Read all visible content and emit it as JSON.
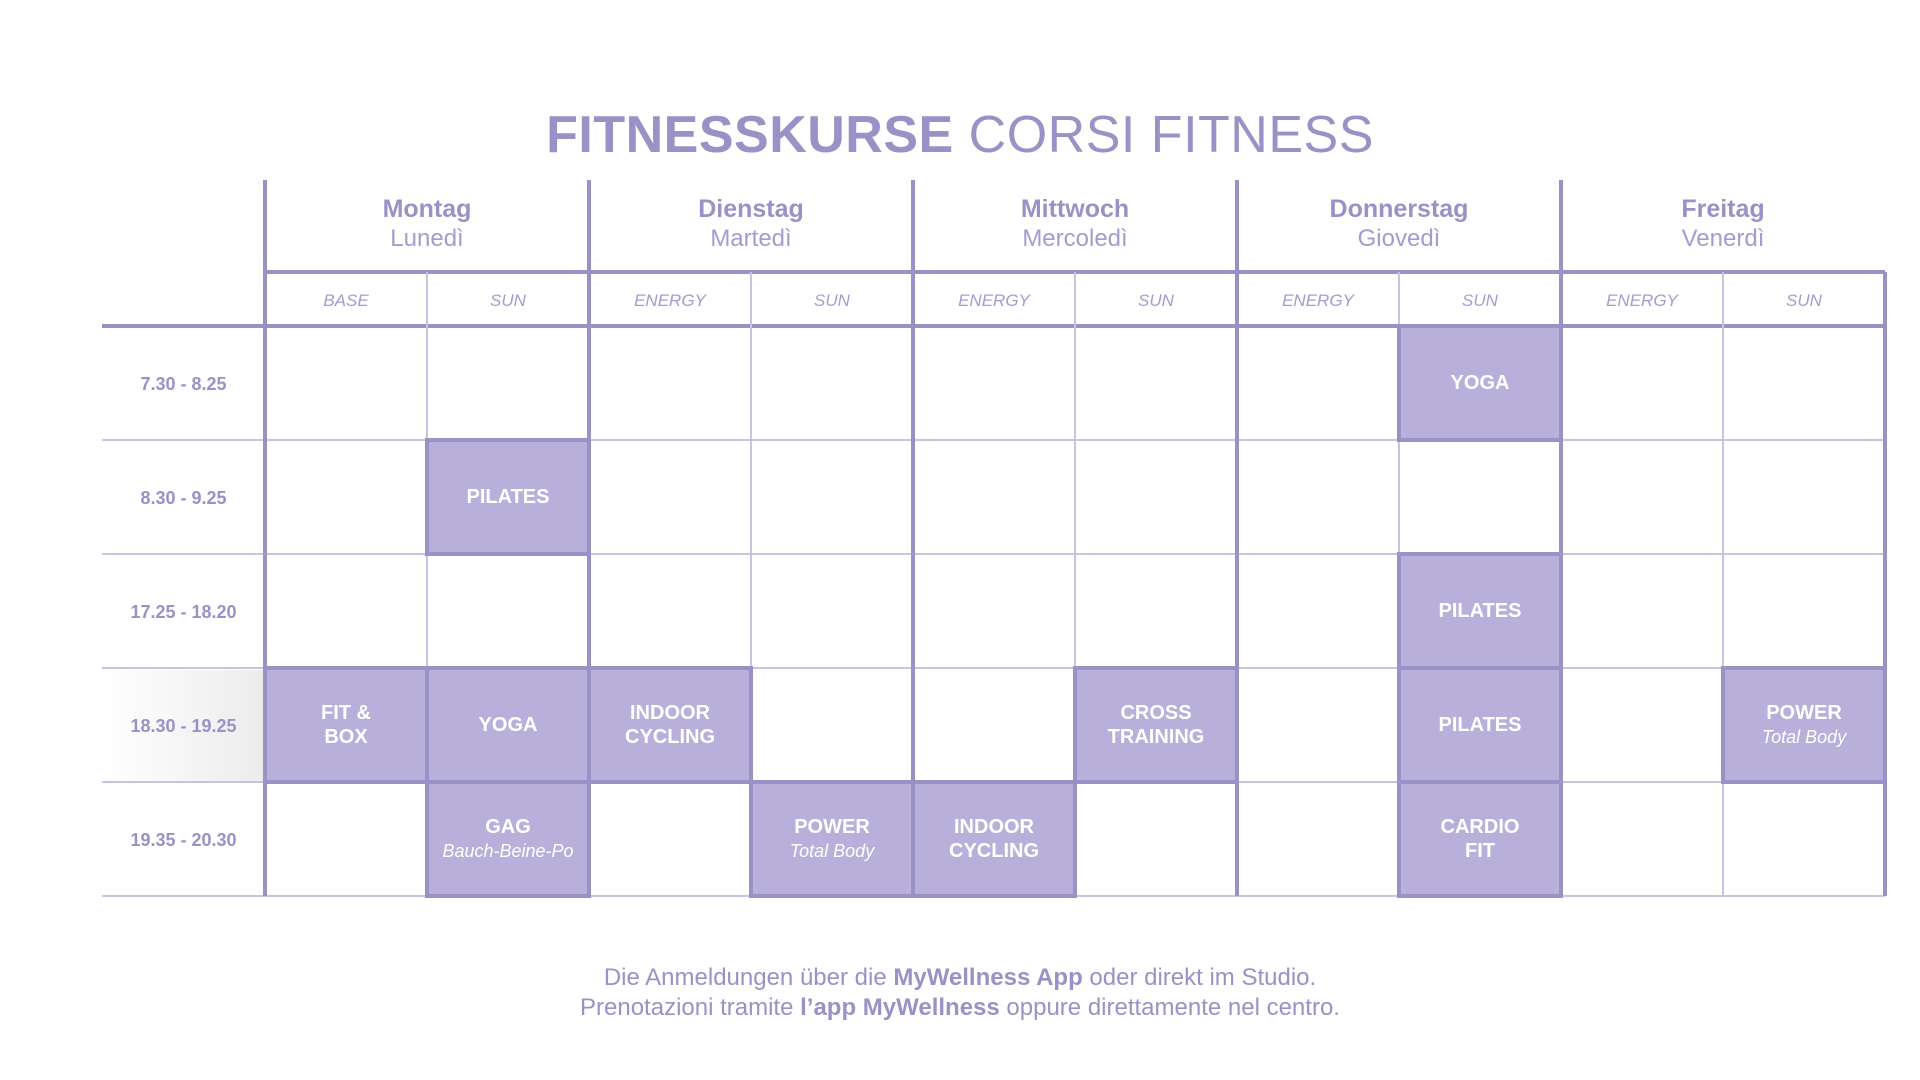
{
  "title": {
    "bold": "FITNESSKURSE",
    "light": "CORSI FITNESS"
  },
  "days": [
    {
      "de": "Montag",
      "it": "Lunedì"
    },
    {
      "de": "Dienstag",
      "it": "Martedì"
    },
    {
      "de": "Mittwoch",
      "it": "Mercoledì"
    },
    {
      "de": "Donnerstag",
      "it": "Giovedì"
    },
    {
      "de": "Freitag",
      "it": "Venerdì"
    }
  ],
  "rooms": [
    "BASE",
    "SUN",
    "ENERGY",
    "SUN",
    "ENERGY",
    "SUN",
    "ENERGY",
    "SUN",
    "ENERGY",
    "SUN"
  ],
  "times": [
    "7.30 - 8.25",
    "8.30 - 9.25",
    "17.25 - 18.20",
    "18.30 - 19.25",
    "19.35 - 20.30"
  ],
  "courses": [
    {
      "col": 7,
      "row": 0,
      "lines": [
        "YOGA"
      ],
      "sub": ""
    },
    {
      "col": 1,
      "row": 1,
      "lines": [
        "PILATES"
      ],
      "sub": ""
    },
    {
      "col": 7,
      "row": 2,
      "lines": [
        "PILATES"
      ],
      "sub": ""
    },
    {
      "col": 0,
      "row": 3,
      "lines": [
        "FIT &",
        "BOX"
      ],
      "sub": ""
    },
    {
      "col": 1,
      "row": 3,
      "lines": [
        "YOGA"
      ],
      "sub": ""
    },
    {
      "col": 2,
      "row": 3,
      "lines": [
        "INDOOR",
        "CYCLING"
      ],
      "sub": ""
    },
    {
      "col": 5,
      "row": 3,
      "lines": [
        "CROSS",
        "TRAINING"
      ],
      "sub": ""
    },
    {
      "col": 7,
      "row": 3,
      "lines": [
        "PILATES"
      ],
      "sub": ""
    },
    {
      "col": 9,
      "row": 3,
      "lines": [
        "POWER"
      ],
      "sub": "Total Body"
    },
    {
      "col": 1,
      "row": 4,
      "lines": [
        "GAG"
      ],
      "sub": "Bauch-Beine-Po"
    },
    {
      "col": 3,
      "row": 4,
      "lines": [
        "POWER"
      ],
      "sub": "Total Body"
    },
    {
      "col": 4,
      "row": 4,
      "lines": [
        "INDOOR",
        "CYCLING"
      ],
      "sub": ""
    },
    {
      "col": 7,
      "row": 4,
      "lines": [
        "CARDIO",
        "FIT"
      ],
      "sub": ""
    }
  ],
  "footer": {
    "line1_pre": "Die Anmeldungen über die ",
    "line1_bold": "MyWellness App",
    "line1_post": " oder direkt im Studio.",
    "line2_pre": "Prenotazioni tramite ",
    "line2_bold": "l’app MyWellness",
    "line2_post": " oppure direttamente nel centro."
  },
  "colors": {
    "accent": "#9a91c6",
    "fill": "#b8b0da",
    "grid": "#c9c3e3"
  }
}
